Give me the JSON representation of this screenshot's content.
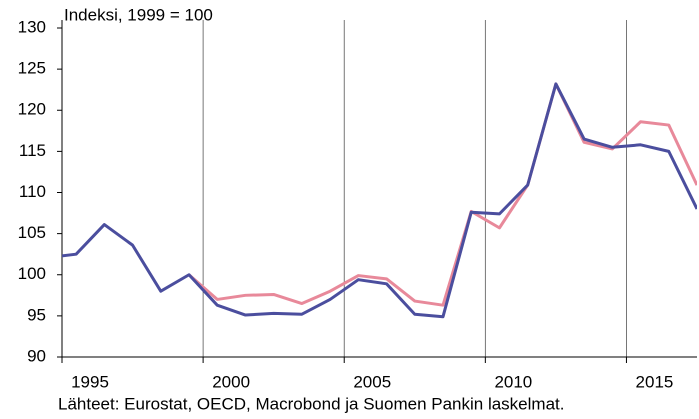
{
  "chart_data": {
    "type": "line",
    "title": "Indeksi, 1999 = 100",
    "source": "Lähteet: Eurostat, OECD, Macrobond ja Suomen Pankin laskelmat.",
    "x": [
      1994.5,
      1995.5,
      1996.5,
      1997.5,
      1998.5,
      1999.5,
      2000.5,
      2001.5,
      2002.5,
      2003.5,
      2004.5,
      2005.5,
      2006.5,
      2007.5,
      2008.5,
      2009.5,
      2010.5,
      2011.5,
      2012.5,
      2013.5,
      2014.5,
      2015.5,
      2016.5,
      2017.5
    ],
    "series": [
      {
        "color": "#4b4e9e",
        "values": [
          102.1,
          102.5,
          106.1,
          103.6,
          98.0,
          100,
          96.3,
          95.1,
          95.3,
          95.2,
          97.0,
          99.4,
          98.9,
          95.2,
          94.9,
          107.6,
          107.4,
          110.9,
          123.2,
          116.5,
          115.5,
          115.8,
          115.0,
          108.0
        ]
      },
      {
        "color": "#e8899a",
        "values": [
          null,
          null,
          null,
          null,
          null,
          100,
          97.0,
          97.5,
          97.6,
          96.5,
          98.0,
          99.9,
          99.5,
          96.8,
          96.3,
          107.7,
          105.7,
          110.9,
          123.2,
          116.1,
          115.3,
          118.6,
          118.2,
          110.9
        ]
      }
    ],
    "xlim": [
      1995,
      2017.5
    ],
    "xticks": [
      1995,
      2000,
      2005,
      2010,
      2015
    ],
    "ylim": [
      90,
      130
    ],
    "yticks": [
      90,
      95,
      100,
      105,
      110,
      115,
      120,
      125,
      130
    ],
    "grid": true
  }
}
